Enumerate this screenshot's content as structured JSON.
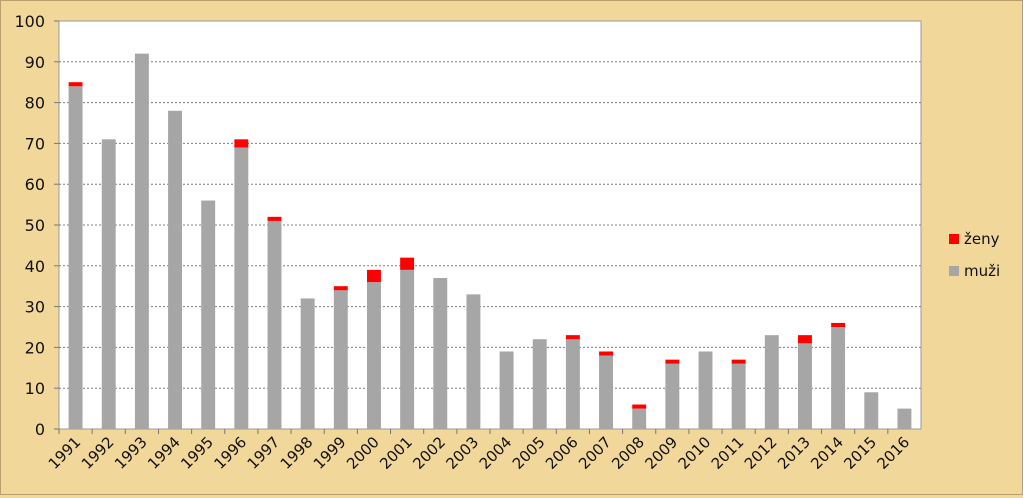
{
  "chart_data": {
    "type": "bar",
    "stacked": true,
    "categories": [
      "1991",
      "1992",
      "1993",
      "1994",
      "1995",
      "1996",
      "1997",
      "1998",
      "1999",
      "2000",
      "2001",
      "2002",
      "2003",
      "2004",
      "2005",
      "2006",
      "2007",
      "2008",
      "2009",
      "2010",
      "2011",
      "2012",
      "2013",
      "2014",
      "2015",
      "2016"
    ],
    "series": [
      {
        "name": "muži",
        "color": "#a6a6a6",
        "values": [
          84,
          71,
          92,
          78,
          56,
          69,
          51,
          32,
          34,
          36,
          39,
          37,
          33,
          19,
          22,
          22,
          18,
          5,
          16,
          19,
          16,
          23,
          21,
          25,
          9,
          5
        ]
      },
      {
        "name": "ženy",
        "color": "#ff0000",
        "values": [
          1,
          0,
          0,
          0,
          0,
          2,
          1,
          0,
          1,
          3,
          3,
          0,
          0,
          0,
          0,
          1,
          1,
          1,
          1,
          0,
          1,
          0,
          2,
          1,
          0,
          0
        ]
      }
    ],
    "ylim": [
      0,
      100
    ],
    "yticks": [
      "0",
      "10",
      "20",
      "30",
      "40",
      "50",
      "60",
      "70",
      "80",
      "90",
      "100"
    ],
    "grid": true,
    "legend_position": "right",
    "legend": [
      {
        "label": "ženy",
        "color": "#ff0000"
      },
      {
        "label": "muži",
        "color": "#a6a6a6"
      }
    ]
  }
}
